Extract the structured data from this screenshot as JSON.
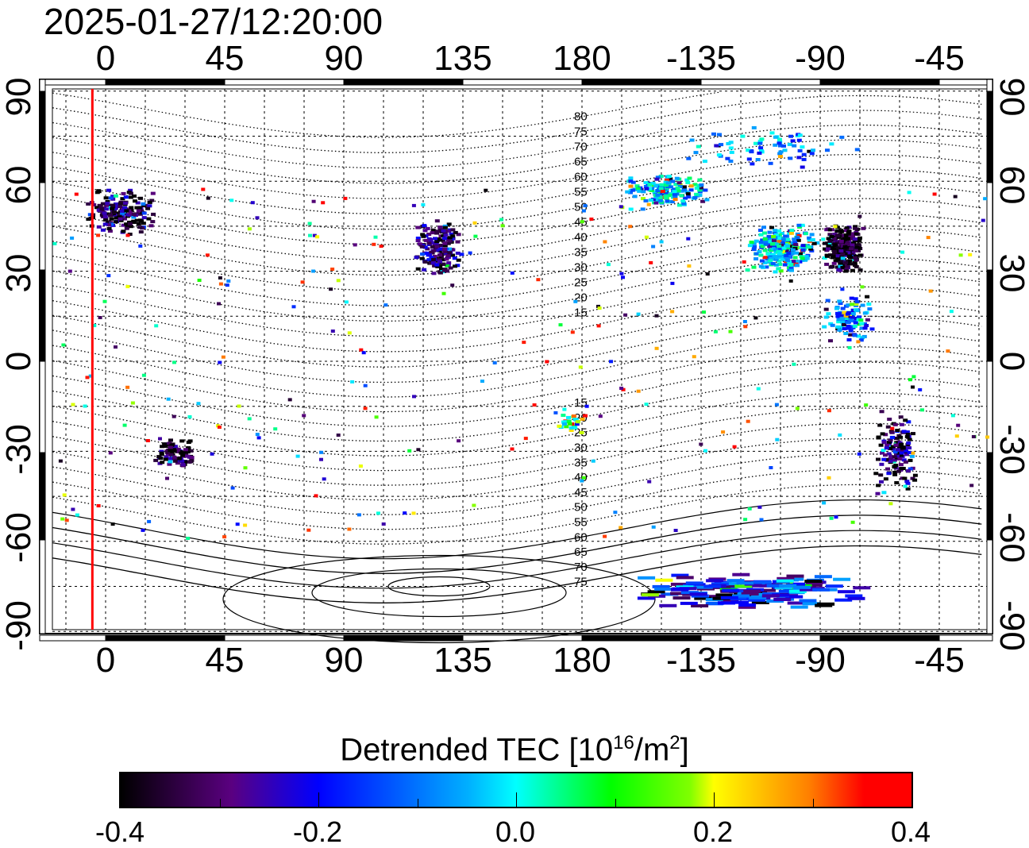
{
  "title": "2025-01-27/12:20:00",
  "map": {
    "lon_ticks": [
      "0",
      "45",
      "90",
      "135",
      "180",
      "-135",
      "-90",
      "-45"
    ],
    "lon_values": [
      0,
      45,
      90,
      135,
      180,
      225,
      270,
      315
    ],
    "lat_ticks": [
      "90",
      "60",
      "30",
      "0",
      "-30",
      "-60",
      "-90"
    ],
    "lat_values": [
      90,
      60,
      30,
      0,
      -30,
      -60,
      -90
    ],
    "lon_range": [
      -20,
      333
    ],
    "lat_range": [
      -90,
      90
    ],
    "marker_longitude": -5,
    "marker_color": "#ff0000",
    "maglat_labels": [
      "80",
      "75",
      "70",
      "65",
      "60",
      "55",
      "50",
      "45",
      "40",
      "35",
      "30",
      "25",
      "20",
      "15",
      "15",
      "20",
      "25",
      "30",
      "35",
      "40",
      "45",
      "50",
      "55",
      "60",
      "65",
      "70",
      "75"
    ],
    "maglat_values": [
      80,
      75,
      70,
      65,
      60,
      55,
      50,
      45,
      40,
      35,
      30,
      25,
      20,
      15,
      -15,
      -20,
      -25,
      -30,
      -35,
      -40,
      -45,
      -50,
      -55,
      -60,
      -65,
      -70,
      -75
    ],
    "clusters": [
      {
        "lon": 5,
        "lat": 50,
        "spread": [
          14,
          8
        ],
        "n": 180,
        "bias": -0.35
      },
      {
        "lon": 25,
        "lat": -30,
        "spread": [
          8,
          5
        ],
        "n": 90,
        "bias": -0.35
      },
      {
        "lon": 125,
        "lat": 38,
        "spread": [
          9,
          10
        ],
        "n": 170,
        "bias": -0.3
      },
      {
        "lon": -150,
        "lat": 57,
        "spread": [
          18,
          6
        ],
        "n": 160,
        "bias": -0.05
      },
      {
        "lon": -105,
        "lat": 38,
        "spread": [
          14,
          9
        ],
        "n": 260,
        "bias": -0.05
      },
      {
        "lon": -82,
        "lat": 38,
        "spread": [
          8,
          8
        ],
        "n": 260,
        "bias": -0.38
      },
      {
        "lon": -80,
        "lat": 15,
        "spread": [
          10,
          8
        ],
        "n": 110,
        "bias": -0.1
      },
      {
        "lon": -62,
        "lat": -30,
        "spread": [
          8,
          15
        ],
        "n": 140,
        "bias": -0.33
      },
      {
        "lon": -120,
        "lat": -76,
        "spread": [
          45,
          6
        ],
        "n": 170,
        "bias": -0.2
      },
      {
        "lon": 175,
        "lat": -20,
        "spread": [
          6,
          4
        ],
        "n": 30,
        "bias": 0.1
      },
      {
        "lon": -110,
        "lat": 72,
        "spread": [
          35,
          8
        ],
        "n": 70,
        "bias": -0.1
      }
    ]
  },
  "colorbar": {
    "label": "Detrended TEC  [10",
    "label_exp1": "16",
    "label_mid": "/m",
    "label_exp2": "2",
    "label_end": "]",
    "min": -0.4,
    "max": 0.4,
    "tick_labels": [
      "-0.4",
      "-0.2",
      "0.0",
      "0.2",
      "0.4"
    ]
  }
}
